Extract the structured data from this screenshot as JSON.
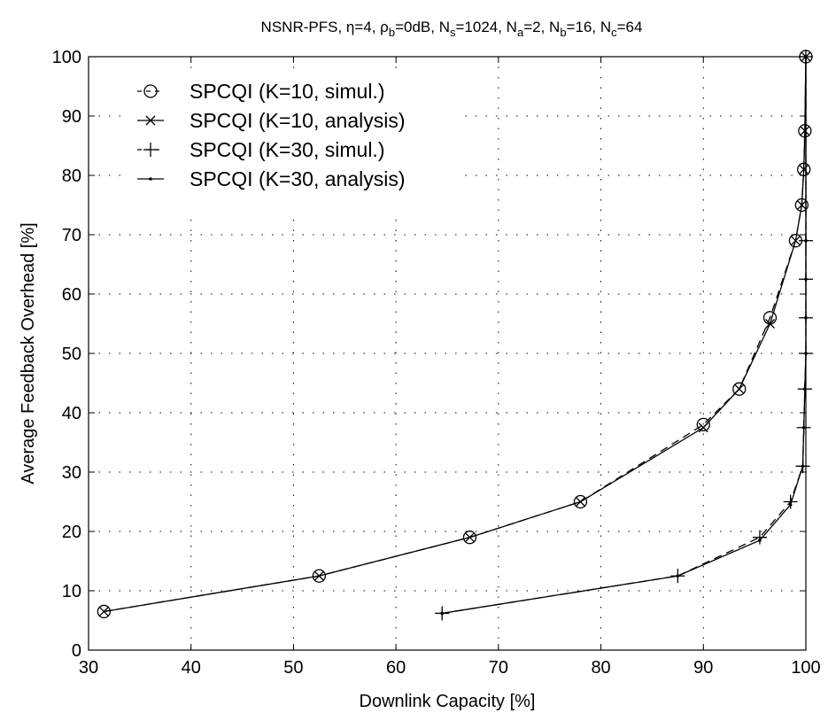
{
  "chart_data": {
    "type": "line",
    "title_parts": [
      {
        "text": "NSNR-PFS, η=4, ρ",
        "sub": false
      },
      {
        "text": "b",
        "sub": true
      },
      {
        "text": "=0dB, N",
        "sub": false
      },
      {
        "text": "s",
        "sub": true
      },
      {
        "text": "=1024, N",
        "sub": false
      },
      {
        "text": "a",
        "sub": true
      },
      {
        "text": "=2, N",
        "sub": false
      },
      {
        "text": "b",
        "sub": true
      },
      {
        "text": "=16, N",
        "sub": false
      },
      {
        "text": "c",
        "sub": true
      },
      {
        "text": "=64",
        "sub": false
      }
    ],
    "xlabel": "Downlink Capacity [%]",
    "ylabel": "Average Feedback Overhead [%]",
    "xlim": [
      30,
      100
    ],
    "ylim": [
      0,
      100
    ],
    "xticks": [
      30,
      40,
      50,
      60,
      70,
      80,
      90,
      100
    ],
    "yticks": [
      0,
      10,
      20,
      30,
      40,
      50,
      60,
      70,
      80,
      90,
      100
    ],
    "grid": true,
    "legend_position": "top-left",
    "series": [
      {
        "name": "SPCQI (K=10, simul.)",
        "marker": "circle",
        "line": "dashed",
        "x": [
          31.5,
          52.5,
          67.2,
          78,
          90,
          93.5,
          96.5,
          99,
          99.6,
          99.8,
          99.9,
          100
        ],
        "y": [
          6.5,
          12.5,
          19,
          25,
          38,
          44,
          56,
          69,
          75,
          81,
          87.5,
          100
        ]
      },
      {
        "name": "SPCQI (K=10, analysis)",
        "marker": "x",
        "line": "solid",
        "x": [
          31.5,
          52.5,
          67.2,
          78,
          90,
          93.5,
          96.5,
          99,
          99.6,
          99.8,
          99.9,
          100
        ],
        "y": [
          6.5,
          12.5,
          19,
          25,
          37.5,
          44,
          55,
          69,
          75,
          81,
          87.5,
          100
        ]
      },
      {
        "name": "SPCQI (K=30, simul.)",
        "marker": "plus",
        "line": "dashed",
        "x": [
          64.5,
          87.5,
          95.5,
          98.5,
          99.7,
          99.8,
          99.9,
          100,
          100,
          100,
          100,
          100
        ],
        "y": [
          6.2,
          12.5,
          19,
          25,
          31,
          37.5,
          44,
          50,
          56,
          62.5,
          69,
          100
        ]
      },
      {
        "name": "SPCQI (K=30, analysis)",
        "marker": "dot",
        "line": "solid",
        "x": [
          64.5,
          87.5,
          95.5,
          98.5,
          99.7,
          99.8,
          99.9,
          100,
          100,
          100,
          100,
          100
        ],
        "y": [
          6.2,
          12.5,
          18.5,
          24.5,
          31,
          37.5,
          44,
          50,
          56,
          62.5,
          69,
          100
        ]
      }
    ]
  }
}
